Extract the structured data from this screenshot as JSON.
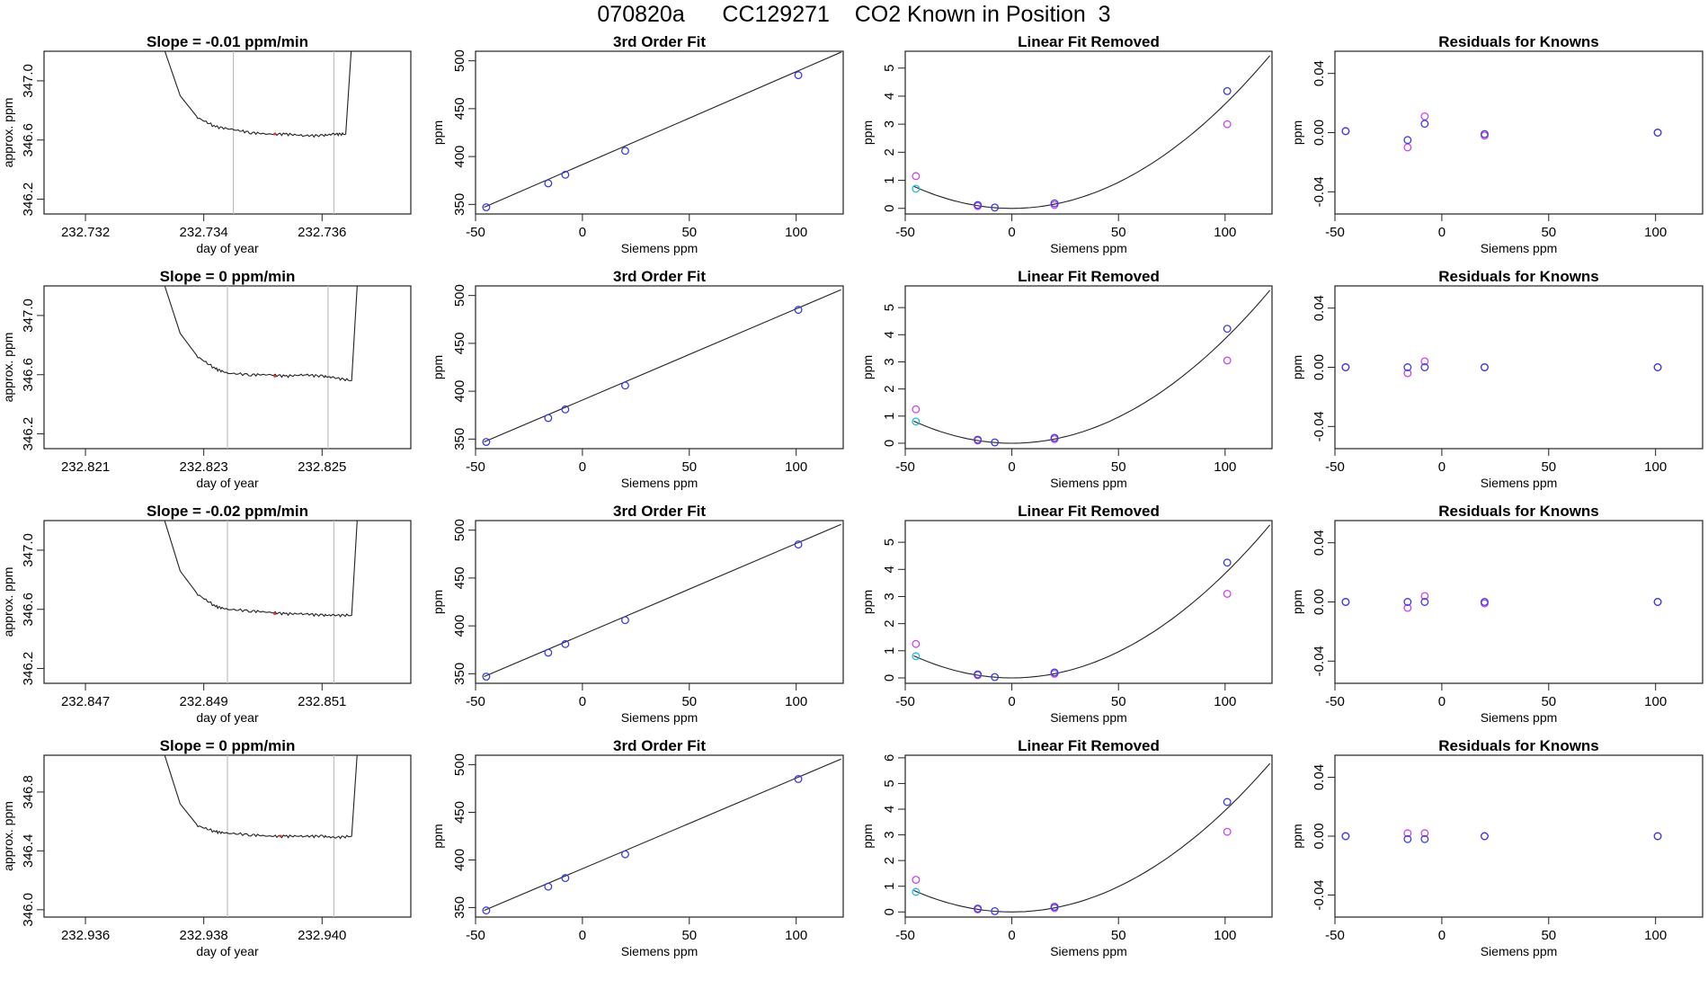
{
  "figure": {
    "title": "070820a      CC129271    CO2 Known in Position  3",
    "colors": {
      "text": "#000000",
      "line": "#222222",
      "gridline": "#bebebe",
      "known_point": "#3b3bdc",
      "fit_point_magenta": "#cc44ee",
      "fit_point_cyan": "#22bbdd",
      "trace_marker": "#ee3333",
      "background": "#ffffff"
    }
  },
  "chart_data": [
    {
      "type": "line",
      "row": 0,
      "panel": "trace",
      "title": "Slope =  -0.01  ppm/min",
      "xlabel": "day of year",
      "ylabel": "approx. ppm",
      "xlim": [
        232.7313,
        232.7375
      ],
      "ylim": [
        346.1,
        347.2
      ],
      "xticks": [
        232.732,
        232.734,
        232.736
      ],
      "xtick_labels": [
        "232.732",
        "232.734",
        "232.736"
      ],
      "yticks": [
        346.2,
        346.6,
        347.0
      ],
      "ytick_labels": [
        "346.2",
        "346.6",
        "347.0"
      ],
      "vlines": [
        232.7345,
        232.7362
      ],
      "x": [
        232.7333,
        232.7336,
        232.7339,
        232.7342,
        232.7345,
        232.7348,
        232.7351,
        232.7354,
        232.7357,
        232.736,
        232.7362,
        232.7364,
        232.7365
      ],
      "y": [
        347.25,
        346.9,
        346.75,
        346.69,
        346.67,
        346.65,
        346.64,
        346.64,
        346.63,
        346.63,
        346.64,
        346.64,
        347.25
      ],
      "marker": {
        "x": 232.7352,
        "y": 346.64
      }
    },
    {
      "type": "scatter",
      "row": 0,
      "panel": "fit3",
      "title": "3rd Order Fit",
      "xlabel": "Siemens ppm",
      "ylabel": "ppm",
      "xlim": [
        -50,
        122
      ],
      "ylim": [
        340,
        510
      ],
      "xticks": [
        -50,
        0,
        50,
        100
      ],
      "xtick_labels": [
        "-50",
        "0",
        "50",
        "100"
      ],
      "yticks": [
        350,
        400,
        450,
        500
      ],
      "ytick_labels": [
        "350",
        "400",
        "450",
        "500"
      ],
      "line": {
        "x": [
          -46,
          121
        ],
        "y": [
          347,
          509
        ]
      },
      "x": [
        -45,
        -16,
        -8,
        20,
        101
      ],
      "y": [
        347,
        372,
        381,
        406,
        485
      ]
    },
    {
      "type": "scatter",
      "row": 0,
      "panel": "linear_removed",
      "title": "Linear Fit Removed",
      "xlabel": "Siemens ppm",
      "ylabel": "ppm",
      "xlim": [
        -50,
        122
      ],
      "ylim": [
        -0.2,
        5.6
      ],
      "xticks": [
        -50,
        0,
        50,
        100
      ],
      "xtick_labels": [
        "-50",
        "0",
        "50",
        "100"
      ],
      "yticks": [
        0,
        1,
        2,
        3,
        4,
        5
      ],
      "ytick_labels": [
        "0",
        "1",
        "2",
        "3",
        "4",
        "5"
      ],
      "curve_coef": 0.000372,
      "curve_xlim": [
        -46,
        121
      ],
      "known": {
        "x": [
          -16,
          -8,
          20,
          101
        ],
        "y": [
          0.12,
          0.03,
          0.18,
          4.18
        ]
      },
      "magenta": {
        "x": [
          -45,
          -16,
          20,
          101
        ],
        "y": [
          1.15,
          0.08,
          0.12,
          3.0
        ]
      },
      "cyan": {
        "x": [
          -45
        ],
        "y": [
          0.7
        ]
      }
    },
    {
      "type": "scatter",
      "row": 0,
      "panel": "residuals",
      "title": "Residuals for Knowns",
      "xlabel": "Siemens ppm",
      "ylabel": "ppm",
      "xlim": [
        -50,
        122
      ],
      "ylim": [
        -0.055,
        0.055
      ],
      "xticks": [
        -50,
        0,
        50,
        100
      ],
      "xtick_labels": [
        "-50",
        "0",
        "50",
        "100"
      ],
      "yticks": [
        -0.04,
        0.0,
        0.04
      ],
      "ytick_labels": [
        "-0.04",
        "0.00",
        "0.04"
      ],
      "known": {
        "x": [
          -45,
          -16,
          -8,
          20,
          101
        ],
        "y": [
          0.001,
          -0.005,
          0.006,
          -0.001,
          0.0
        ]
      },
      "magenta": {
        "x": [
          -45,
          -16,
          -8,
          20,
          101
        ],
        "y": [
          0.001,
          -0.01,
          0.011,
          -0.002,
          0.0
        ]
      }
    },
    {
      "type": "line",
      "row": 1,
      "panel": "trace",
      "title": "Slope =  0  ppm/min",
      "xlabel": "day of year",
      "ylabel": "approx. ppm",
      "xlim": [
        232.8203,
        232.8265
      ],
      "ylim": [
        346.1,
        347.2
      ],
      "xticks": [
        232.821,
        232.823,
        232.825
      ],
      "xtick_labels": [
        "232.821",
        "232.823",
        "232.825"
      ],
      "yticks": [
        346.2,
        346.6,
        347.0
      ],
      "ytick_labels": [
        "346.2",
        "346.6",
        "347.0"
      ],
      "vlines": [
        232.8234,
        232.8251
      ],
      "x": [
        232.8223,
        232.8226,
        232.8229,
        232.8232,
        232.8234,
        232.8238,
        232.8241,
        232.8244,
        232.8247,
        232.825,
        232.8252,
        232.8255,
        232.8256
      ],
      "y": [
        347.25,
        346.88,
        346.72,
        346.64,
        346.61,
        346.6,
        346.6,
        346.59,
        346.6,
        346.59,
        346.58,
        346.56,
        347.25
      ],
      "marker": {
        "x": 232.8242,
        "y": 346.59
      }
    },
    {
      "type": "scatter",
      "row": 1,
      "panel": "fit3",
      "title": "3rd Order Fit",
      "xlabel": "Siemens ppm",
      "ylabel": "ppm",
      "xlim": [
        -50,
        122
      ],
      "ylim": [
        340,
        510
      ],
      "xticks": [
        -50,
        0,
        50,
        100
      ],
      "xtick_labels": [
        "-50",
        "0",
        "50",
        "100"
      ],
      "yticks": [
        350,
        400,
        450,
        500
      ],
      "ytick_labels": [
        "350",
        "400",
        "450",
        "500"
      ],
      "line": {
        "x": [
          -46,
          121
        ],
        "y": [
          347,
          506
        ]
      },
      "x": [
        -45,
        -16,
        -8,
        20,
        101
      ],
      "y": [
        347,
        372,
        381,
        406,
        485
      ]
    },
    {
      "type": "scatter",
      "row": 1,
      "panel": "linear_removed",
      "title": "Linear Fit Removed",
      "xlabel": "Siemens ppm",
      "ylabel": "ppm",
      "xlim": [
        -50,
        122
      ],
      "ylim": [
        -0.2,
        5.8
      ],
      "xticks": [
        -50,
        0,
        50,
        100
      ],
      "xtick_labels": [
        "-50",
        "0",
        "50",
        "100"
      ],
      "yticks": [
        0,
        1,
        2,
        3,
        4,
        5
      ],
      "ytick_labels": [
        "0",
        "1",
        "2",
        "3",
        "4",
        "5"
      ],
      "curve_coef": 0.000385,
      "curve_xlim": [
        -46,
        121
      ],
      "known": {
        "x": [
          -16,
          -8,
          20,
          101
        ],
        "y": [
          0.13,
          0.03,
          0.2,
          4.22
        ]
      },
      "magenta": {
        "x": [
          -45,
          -16,
          20,
          101
        ],
        "y": [
          1.25,
          0.1,
          0.15,
          3.05
        ]
      },
      "cyan": {
        "x": [
          -45
        ],
        "y": [
          0.8
        ]
      }
    },
    {
      "type": "scatter",
      "row": 1,
      "panel": "residuals",
      "title": "Residuals for Knowns",
      "xlabel": "Siemens ppm",
      "ylabel": "ppm",
      "xlim": [
        -50,
        122
      ],
      "ylim": [
        -0.055,
        0.055
      ],
      "xticks": [
        -50,
        0,
        50,
        100
      ],
      "xtick_labels": [
        "-50",
        "0",
        "50",
        "100"
      ],
      "yticks": [
        -0.04,
        0.0,
        0.04
      ],
      "ytick_labels": [
        "-0.04",
        "0.00",
        "0.04"
      ],
      "known": {
        "x": [
          -45,
          -16,
          -8,
          20,
          101
        ],
        "y": [
          0.0,
          0.0,
          0.0,
          0.0,
          0.0
        ]
      },
      "magenta": {
        "x": [
          -45,
          -16,
          -8,
          20,
          101
        ],
        "y": [
          0.0,
          -0.004,
          0.004,
          0.0,
          0.0
        ]
      }
    },
    {
      "type": "line",
      "row": 2,
      "panel": "trace",
      "title": "Slope =  -0.02  ppm/min",
      "xlabel": "day of year",
      "ylabel": "approx. ppm",
      "xlim": [
        232.8463,
        232.8525
      ],
      "ylim": [
        346.1,
        347.2
      ],
      "xticks": [
        232.847,
        232.849,
        232.851
      ],
      "xtick_labels": [
        "232.847",
        "232.849",
        "232.851"
      ],
      "yticks": [
        346.2,
        346.6,
        347.0
      ],
      "ytick_labels": [
        "346.2",
        "346.6",
        "347.0"
      ],
      "vlines": [
        232.8494,
        232.8512
      ],
      "x": [
        232.8483,
        232.8486,
        232.8489,
        232.8492,
        232.8494,
        232.8498,
        232.8501,
        232.8504,
        232.8507,
        232.851,
        232.8512,
        232.8515,
        232.8516
      ],
      "y": [
        347.25,
        346.86,
        346.7,
        346.62,
        346.6,
        346.59,
        346.58,
        346.57,
        346.57,
        346.56,
        346.56,
        346.56,
        347.25
      ],
      "marker": {
        "x": 232.8502,
        "y": 346.57
      }
    },
    {
      "type": "scatter",
      "row": 2,
      "panel": "fit3",
      "title": "3rd Order Fit",
      "xlabel": "Siemens ppm",
      "ylabel": "ppm",
      "xlim": [
        -50,
        122
      ],
      "ylim": [
        340,
        510
      ],
      "xticks": [
        -50,
        0,
        50,
        100
      ],
      "xtick_labels": [
        "-50",
        "0",
        "50",
        "100"
      ],
      "yticks": [
        350,
        400,
        450,
        500
      ],
      "ytick_labels": [
        "350",
        "400",
        "450",
        "500"
      ],
      "line": {
        "x": [
          -46,
          121
        ],
        "y": [
          347,
          506
        ]
      },
      "x": [
        -45,
        -16,
        -8,
        20,
        101
      ],
      "y": [
        347,
        372,
        381,
        406,
        485
      ]
    },
    {
      "type": "scatter",
      "row": 2,
      "panel": "linear_removed",
      "title": "Linear Fit Removed",
      "xlabel": "Siemens ppm",
      "ylabel": "ppm",
      "xlim": [
        -50,
        122
      ],
      "ylim": [
        -0.2,
        5.8
      ],
      "xticks": [
        -50,
        0,
        50,
        100
      ],
      "xtick_labels": [
        "-50",
        "0",
        "50",
        "100"
      ],
      "yticks": [
        0,
        1,
        2,
        3,
        4,
        5
      ],
      "ytick_labels": [
        "0",
        "1",
        "2",
        "3",
        "4",
        "5"
      ],
      "curve_coef": 0.000385,
      "curve_xlim": [
        -46,
        121
      ],
      "known": {
        "x": [
          -16,
          -8,
          20,
          101
        ],
        "y": [
          0.13,
          0.03,
          0.2,
          4.25
        ]
      },
      "magenta": {
        "x": [
          -45,
          -16,
          20,
          101
        ],
        "y": [
          1.25,
          0.1,
          0.15,
          3.1
        ]
      },
      "cyan": {
        "x": [
          -45
        ],
        "y": [
          0.8
        ]
      }
    },
    {
      "type": "scatter",
      "row": 2,
      "panel": "residuals",
      "title": "Residuals for Knowns",
      "xlabel": "Siemens ppm",
      "ylabel": "ppm",
      "xlim": [
        -50,
        122
      ],
      "ylim": [
        -0.055,
        0.055
      ],
      "xticks": [
        -50,
        0,
        50,
        100
      ],
      "xtick_labels": [
        "-50",
        "0",
        "50",
        "100"
      ],
      "yticks": [
        -0.04,
        0.0,
        0.04
      ],
      "ytick_labels": [
        "-0.04",
        "0.00",
        "0.04"
      ],
      "known": {
        "x": [
          -45,
          -16,
          -8,
          20,
          101
        ],
        "y": [
          0.0,
          0.0,
          0.0,
          0.0,
          0.0
        ]
      },
      "magenta": {
        "x": [
          -45,
          -16,
          -8,
          20,
          101
        ],
        "y": [
          0.0,
          -0.004,
          0.004,
          -0.001,
          0.0
        ]
      }
    },
    {
      "type": "line",
      "row": 3,
      "panel": "trace",
      "title": "Slope =  0  ppm/min",
      "xlabel": "day of year",
      "ylabel": "approx. ppm",
      "xlim": [
        232.9353,
        232.9415
      ],
      "ylim": [
        345.95,
        347.05
      ],
      "xticks": [
        232.936,
        232.938,
        232.94
      ],
      "xtick_labels": [
        "232.936",
        "232.938",
        "232.940"
      ],
      "yticks": [
        346.0,
        346.4,
        346.8
      ],
      "ytick_labels": [
        "346.0",
        "346.4",
        "346.8"
      ],
      "vlines": [
        232.9384,
        232.9402
      ],
      "x": [
        232.9373,
        232.9376,
        232.9379,
        232.9382,
        232.9384,
        232.9388,
        232.9391,
        232.9394,
        232.9397,
        232.94,
        232.9402,
        232.9405,
        232.9406
      ],
      "y": [
        347.1,
        346.72,
        346.57,
        346.53,
        346.52,
        346.51,
        346.5,
        346.5,
        346.5,
        346.5,
        346.49,
        346.5,
        347.1
      ],
      "marker": {
        "x": 232.9393,
        "y": 346.5
      }
    },
    {
      "type": "scatter",
      "row": 3,
      "panel": "fit3",
      "title": "3rd Order Fit",
      "xlabel": "Siemens ppm",
      "ylabel": "ppm",
      "xlim": [
        -50,
        122
      ],
      "ylim": [
        340,
        510
      ],
      "xticks": [
        -50,
        0,
        50,
        100
      ],
      "xtick_labels": [
        "-50",
        "0",
        "50",
        "100"
      ],
      "yticks": [
        350,
        400,
        450,
        500
      ],
      "ytick_labels": [
        "350",
        "400",
        "450",
        "500"
      ],
      "line": {
        "x": [
          -46,
          121
        ],
        "y": [
          347,
          506
        ]
      },
      "x": [
        -45,
        -16,
        -8,
        20,
        101
      ],
      "y": [
        347,
        372,
        381,
        406,
        485
      ]
    },
    {
      "type": "scatter",
      "row": 3,
      "panel": "linear_removed",
      "title": "Linear Fit Removed",
      "xlabel": "Siemens ppm",
      "ylabel": "ppm",
      "xlim": [
        -50,
        122
      ],
      "ylim": [
        -0.2,
        6.1
      ],
      "xticks": [
        -50,
        0,
        50,
        100
      ],
      "xtick_labels": [
        "-50",
        "0",
        "50",
        "100"
      ],
      "yticks": [
        0,
        1,
        2,
        3,
        4,
        5,
        6
      ],
      "ytick_labels": [
        "0",
        "1",
        "2",
        "3",
        "4",
        "5",
        "6"
      ],
      "curve_coef": 0.000395,
      "curve_xlim": [
        -46,
        121
      ],
      "known": {
        "x": [
          -16,
          -8,
          20,
          101
        ],
        "y": [
          0.13,
          0.03,
          0.2,
          4.28
        ]
      },
      "magenta": {
        "x": [
          -45,
          -16,
          20,
          101
        ],
        "y": [
          1.25,
          0.1,
          0.15,
          3.12
        ]
      },
      "cyan": {
        "x": [
          -45
        ],
        "y": [
          0.78
        ]
      }
    },
    {
      "type": "scatter",
      "row": 3,
      "panel": "residuals",
      "title": "Residuals for Knowns",
      "xlabel": "Siemens ppm",
      "ylabel": "ppm",
      "xlim": [
        -50,
        122
      ],
      "ylim": [
        -0.055,
        0.055
      ],
      "xticks": [
        -50,
        0,
        50,
        100
      ],
      "xtick_labels": [
        "-50",
        "0",
        "50",
        "100"
      ],
      "yticks": [
        -0.04,
        0.0,
        0.04
      ],
      "ytick_labels": [
        "-0.04",
        "0.00",
        "0.04"
      ],
      "known": {
        "x": [
          -45,
          -16,
          -8,
          20,
          101
        ],
        "y": [
          0.0,
          -0.002,
          -0.002,
          0.0,
          0.0
        ]
      },
      "magenta": {
        "x": [
          -45,
          -16,
          -8,
          20,
          101
        ],
        "y": [
          0.0,
          0.002,
          0.002,
          0.0,
          0.0
        ]
      }
    }
  ]
}
